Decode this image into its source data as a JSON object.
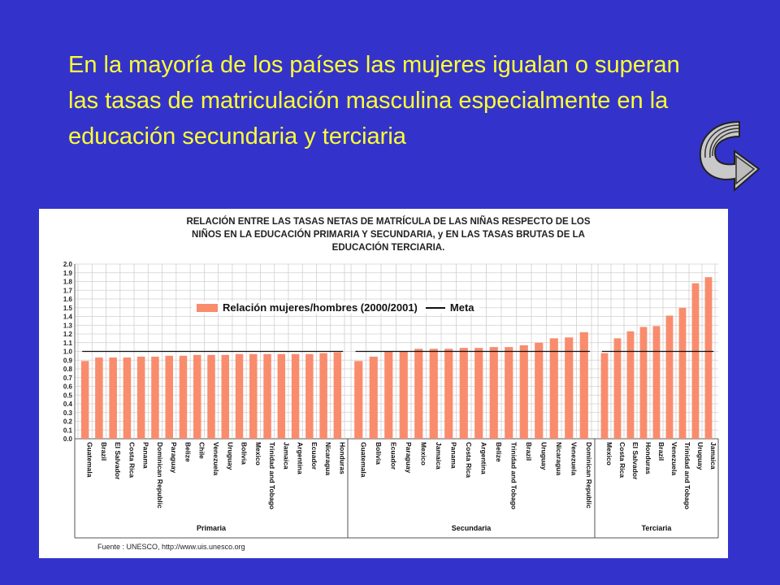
{
  "title": "En la mayoría de los países las mujeres igualan o superan las tasas de matriculación masculina especialmente en la educación secundaria y terciaria",
  "icons": {
    "return": "curved-arrow-return-icon"
  },
  "chart_data": {
    "type": "bar",
    "title_lines": [
      "RELACIÓN ENTRE LAS TASAS NETAS DE MATRÍCULA DE LAS NIÑAS RESPECTO DE LOS",
      "NIÑOS EN LA EDUCACIÓN PRIMARIA Y SECUNDARIA, y EN LAS TASAS BRUTAS DE LA",
      "EDUCACIÓN TERCIARIA."
    ],
    "legend": {
      "bars": "Relación mujeres/hombres (2000/2001)",
      "line": "Meta"
    },
    "ylim": [
      0,
      2.0
    ],
    "yticks": [
      "0.0",
      "0.1",
      "0.2",
      "0.3",
      "0.4",
      "0.5",
      "0.6",
      "0.7",
      "0.8",
      "0.9",
      "1.0",
      "1.1",
      "1.2",
      "1.3",
      "1.4",
      "1.5",
      "1.6",
      "1.7",
      "1.8",
      "1.9",
      "2.0"
    ],
    "meta_value": 1.0,
    "bar_color": "#f98c6d",
    "groups": [
      {
        "name": "Primaria",
        "categories": [
          "Guatemala",
          "Brazil",
          "El Salvador",
          "Costa Rica",
          "Panama",
          "Dominican Republic",
          "Paraguay",
          "Belize",
          "Chile",
          "Venezuela",
          "Uruguay",
          "Bolivia",
          "Mexico",
          "Trinidad and Tobago",
          "Jamaica",
          "Argentina",
          "Ecuador",
          "Nicaragua",
          "Honduras"
        ],
        "values": [
          0.89,
          0.93,
          0.93,
          0.93,
          0.94,
          0.94,
          0.95,
          0.95,
          0.96,
          0.96,
          0.96,
          0.97,
          0.97,
          0.97,
          0.97,
          0.97,
          0.97,
          0.98,
          0.99
        ]
      },
      {
        "name": "Secundaria",
        "categories": [
          "Guatemala",
          "Bolivia",
          "Ecuador",
          "Paraguay",
          "Mexico",
          "Jamaica",
          "Panama",
          "Costa Rica",
          "Argentina",
          "Belize",
          "Trinidad and Tobago",
          "Brazil",
          "Uruguay",
          "Nicaragua",
          "Venezuela",
          "Dominican Republic"
        ],
        "values": [
          0.89,
          0.94,
          1.0,
          1.0,
          1.03,
          1.03,
          1.03,
          1.04,
          1.04,
          1.05,
          1.05,
          1.07,
          1.1,
          1.15,
          1.16,
          1.22
        ]
      },
      {
        "name": "Terciaria",
        "categories": [
          "Mexico",
          "Costa Rica",
          "El Salvador",
          "Honduras",
          "Brazil",
          "Venezuela",
          "Trinidad and Tobago",
          "Uruguay",
          "Jamaica"
        ],
        "values": [
          0.98,
          1.15,
          1.23,
          1.28,
          1.29,
          1.41,
          1.5,
          1.78,
          1.85
        ]
      }
    ],
    "source": "Fuente : UNESCO, http://www.uis.unesco.org"
  }
}
